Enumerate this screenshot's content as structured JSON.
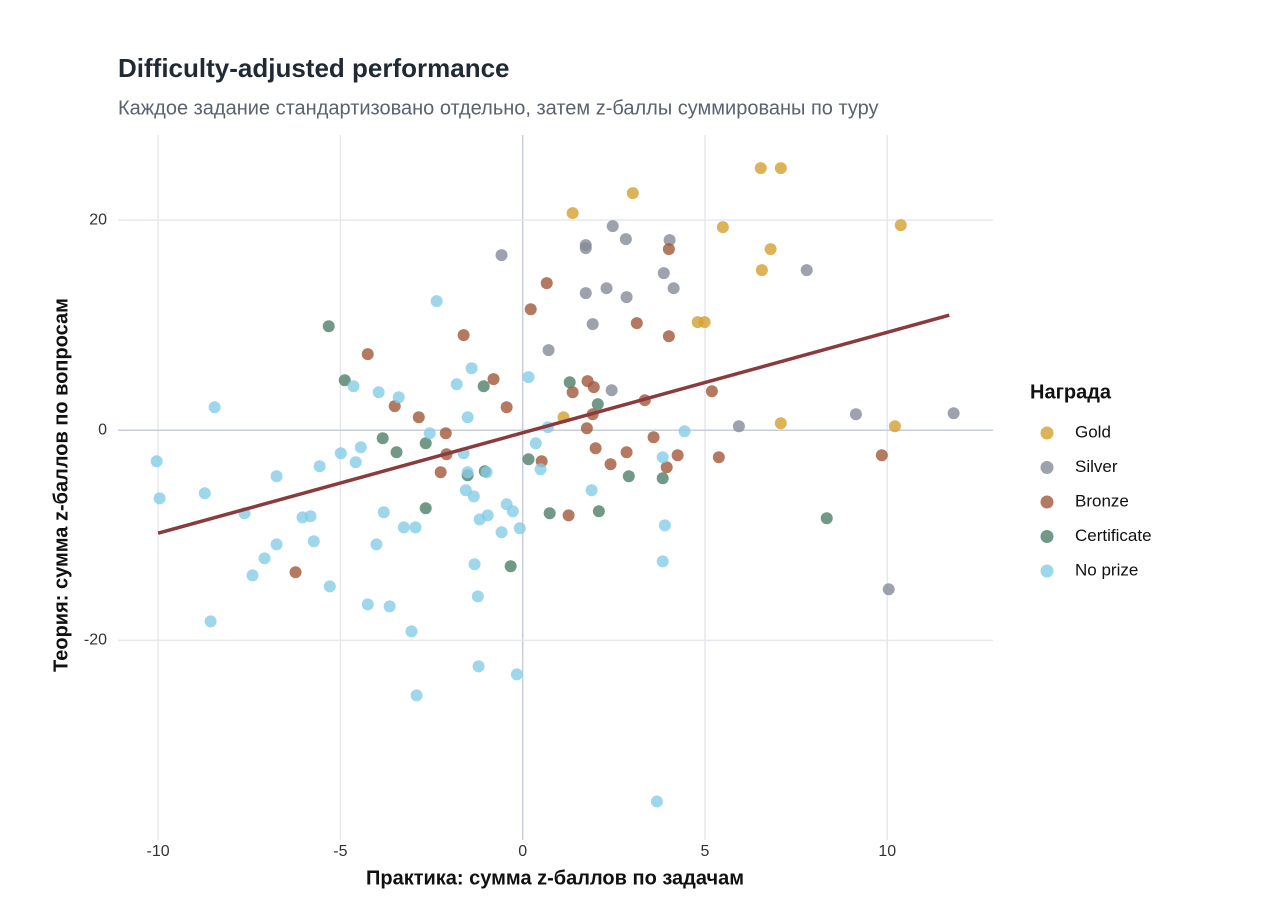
{
  "chart_data": {
    "type": "scatter",
    "title": "Difficulty-adjusted performance",
    "subtitle": "Каждое задание стандартизовано отдельно, затем z-баллы суммированы по туру",
    "x_label": "Практика: сумма z-баллов по задачам",
    "y_label": "Теория: сумма z-баллов по вопросам",
    "legend_title": "Награда",
    "legend_position": "right",
    "grid": true,
    "xlim": [
      -11.1,
      12.9
    ],
    "ylim": [
      -39,
      28.1
    ],
    "xticks": [
      -10,
      -5,
      0,
      5,
      10
    ],
    "yticks": [
      -20,
      0,
      20
    ],
    "trend_line": {
      "color": "#8b3a3e",
      "x": [
        -10,
        11.7
      ],
      "values": [
        -9.8,
        10.95
      ]
    },
    "series": [
      {
        "name": "Gold",
        "color": "#d4a030",
        "x": [
          6.53,
          7.08,
          3.02,
          1.37,
          5.49,
          10.37,
          6.8,
          6.56,
          4.8,
          4.99,
          1.12,
          7.08,
          10.21
        ],
        "values": [
          24.95,
          24.95,
          22.57,
          20.67,
          19.33,
          19.52,
          17.24,
          15.24,
          10.29,
          10.29,
          1.24,
          0.67,
          0.38
        ]
      },
      {
        "name": "Silver",
        "color": "#868b99",
        "x": [
          2.47,
          1.73,
          1.73,
          2.83,
          4.03,
          -0.58,
          3.87,
          7.79,
          4.14,
          2.3,
          1.73,
          2.85,
          1.92,
          0.71,
          2.44,
          5.93,
          9.14,
          11.82,
          10.04
        ],
        "values": [
          19.43,
          17.62,
          17.33,
          18.19,
          18.1,
          16.67,
          14.95,
          15.24,
          13.52,
          13.52,
          13.05,
          12.67,
          10.1,
          7.62,
          3.81,
          0.38,
          1.52,
          1.62,
          -15.14
        ]
      },
      {
        "name": "Bronze",
        "color": "#a0583a",
        "x": [
          4.01,
          0.66,
          0.22,
          3.13,
          -1.62,
          4.01,
          -4.25,
          -0.8,
          1.78,
          1.95,
          5.19,
          1.37,
          3.35,
          -3.51,
          -0.44,
          -2.85,
          1.92,
          -2.11,
          1.76,
          3.59,
          2.0,
          2.85,
          -2.09,
          4.25,
          5.38,
          0.52,
          2.41,
          3.95,
          -2.25,
          9.85,
          1.26,
          -6.23
        ],
        "values": [
          17.24,
          14.0,
          11.52,
          10.19,
          9.05,
          8.95,
          7.24,
          4.86,
          4.67,
          4.1,
          3.71,
          3.62,
          2.86,
          2.29,
          2.19,
          1.24,
          1.52,
          -0.29,
          0.19,
          -0.67,
          -1.71,
          -2.1,
          -2.29,
          -2.38,
          -2.57,
          -2.95,
          -3.24,
          -3.52,
          -4.0,
          -2.38,
          -8.1,
          -13.52
        ]
      },
      {
        "name": "Certificate",
        "color": "#4f7e69",
        "x": [
          -5.32,
          -4.88,
          1.29,
          -1.07,
          2.06,
          -3.84,
          -2.66,
          -3.46,
          0.16,
          -1.51,
          -1.04,
          2.91,
          3.84,
          -2.66,
          0.74,
          2.09,
          -0.33,
          8.34
        ],
        "values": [
          9.9,
          4.76,
          4.57,
          4.19,
          2.48,
          -0.76,
          -1.24,
          -2.1,
          -2.76,
          -4.29,
          -3.9,
          -4.38,
          -4.57,
          -7.43,
          -7.9,
          -7.71,
          -12.95,
          -8.38
        ]
      },
      {
        "name": "No prize",
        "color": "#86cce6",
        "x": [
          -2.36,
          -1.4,
          -1.81,
          0.16,
          -4.64,
          -3.95,
          -3.4,
          -8.45,
          -1.51,
          0.69,
          -2.55,
          4.44,
          0.36,
          -4.44,
          -4.99,
          -1.62,
          -10.04,
          -4.58,
          3.84,
          -5.57,
          0.49,
          -1.51,
          -0.99,
          -6.75,
          -1.56,
          1.89,
          -9.96,
          -8.72,
          -1.34,
          -0.44,
          -0.27,
          -7.63,
          -3.81,
          -0.96,
          -6.04,
          -5.82,
          -1.18,
          3.9,
          -3.26,
          -2.94,
          -0.08,
          -0.58,
          -5.73,
          -6.75,
          -4.01,
          -7.08,
          3.84,
          -1.32,
          -7.41,
          -5.29,
          -1.23,
          -4.25,
          -3.65,
          -8.56,
          -3.05,
          -1.21,
          -0.16,
          -2.91,
          3.68
        ],
        "values": [
          12.29,
          5.9,
          4.38,
          5.05,
          4.19,
          3.62,
          3.14,
          2.19,
          1.24,
          0.29,
          -0.29,
          -0.1,
          -1.24,
          -1.62,
          -2.19,
          -2.19,
          -2.95,
          -3.05,
          -2.57,
          -3.43,
          -3.71,
          -4.0,
          -4.0,
          -4.38,
          -5.71,
          -5.71,
          -6.48,
          -6.0,
          -6.29,
          -7.05,
          -7.71,
          -7.9,
          -7.81,
          -8.1,
          -8.29,
          -8.19,
          -8.48,
          -9.05,
          -9.24,
          -9.24,
          -9.33,
          -9.71,
          -10.57,
          -10.86,
          -10.86,
          -12.19,
          -12.48,
          -12.76,
          -13.81,
          -14.86,
          -15.81,
          -16.57,
          -16.76,
          -18.19,
          -19.14,
          -22.48,
          -23.24,
          -25.24,
          -35.33
        ]
      }
    ]
  }
}
